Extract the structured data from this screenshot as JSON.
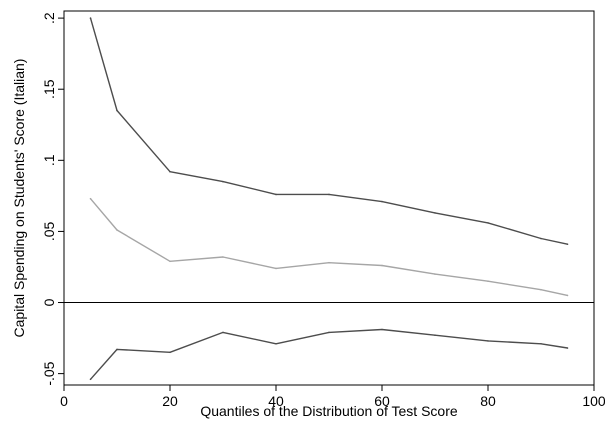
{
  "chart_data": {
    "type": "line",
    "title": "",
    "xlabel": "Quantiles of the Distribution of Test Score",
    "ylabel": "Capital Spending on Students' Score (Italian)",
    "xlim": [
      0,
      100
    ],
    "ylim": [
      -0.058,
      0.205
    ],
    "x_ticks": [
      0,
      20,
      40,
      60,
      80,
      100
    ],
    "x_tick_labels": [
      "0",
      "20",
      "40",
      "60",
      "80",
      "100"
    ],
    "y_ticks": [
      -0.05,
      0,
      0.05,
      0.1,
      0.15,
      0.2
    ],
    "y_tick_labels": [
      "-.05",
      "0",
      ".05",
      ".1",
      ".15",
      ".2"
    ],
    "reference_line_y": 0,
    "grid": false,
    "legend": "none",
    "x": [
      5,
      10,
      20,
      30,
      40,
      50,
      60,
      70,
      80,
      90,
      95
    ],
    "series": [
      {
        "role": "upper-bound",
        "color": "#4d4d4d",
        "values": [
          0.2,
          0.135,
          0.092,
          0.085,
          0.076,
          0.076,
          0.071,
          0.063,
          0.056,
          0.045,
          0.041
        ]
      },
      {
        "role": "estimate",
        "color": "#a6a6a6",
        "values": [
          0.073,
          0.051,
          0.029,
          0.032,
          0.024,
          0.028,
          0.026,
          0.02,
          0.015,
          0.009,
          0.005
        ]
      },
      {
        "role": "lower-bound",
        "color": "#4d4d4d",
        "values": [
          -0.054,
          -0.033,
          -0.035,
          -0.021,
          -0.029,
          -0.021,
          -0.019,
          -0.023,
          -0.027,
          -0.029,
          -0.032
        ]
      }
    ]
  }
}
